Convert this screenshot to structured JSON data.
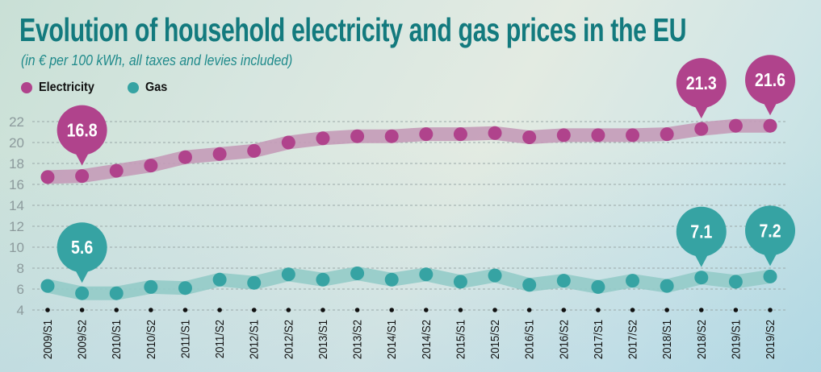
{
  "header": {
    "title": "Evolution of household electricity and gas prices in the EU",
    "subtitle": "(in € per 100 kWh, all taxes and levies included)"
  },
  "colors": {
    "electricity": "#b0438c",
    "electricity_band": "#c49bb8",
    "gas": "#36a3a3",
    "gas_band": "#93cbc8",
    "title": "#137a7e",
    "grid": "#9aa8a8"
  },
  "chart_data": {
    "type": "line",
    "title": "Evolution of household electricity and gas prices in the EU",
    "subtitle": "(in € per 100 kWh, all taxes and levies included)",
    "xlabel": "",
    "ylabel": "",
    "ylim": [
      4,
      22
    ],
    "yticks": [
      4,
      6,
      8,
      10,
      12,
      14,
      16,
      18,
      20,
      22
    ],
    "grid": true,
    "legend_position": "top-left",
    "categories": [
      "2009/S1",
      "2009/S2",
      "2010/S1",
      "2010/S2",
      "2011/S1",
      "2011/S2",
      "2012/S1",
      "2012/S2",
      "2013/S1",
      "2013/S2",
      "2014/S1",
      "2014/S2",
      "2015/S1",
      "2015/S2",
      "2016/S1",
      "2016/S2",
      "2017/S1",
      "2017/S2",
      "2018/S1",
      "2018/S2",
      "2019/S1",
      "2019/S2"
    ],
    "series": [
      {
        "name": "Electricity",
        "values": [
          16.7,
          16.8,
          17.3,
          17.8,
          18.6,
          18.9,
          19.2,
          20.0,
          20.4,
          20.6,
          20.6,
          20.8,
          20.8,
          20.9,
          20.5,
          20.7,
          20.7,
          20.7,
          20.8,
          21.3,
          21.6,
          21.6
        ]
      },
      {
        "name": "Gas",
        "values": [
          6.3,
          5.6,
          5.6,
          6.2,
          6.1,
          6.9,
          6.6,
          7.4,
          6.9,
          7.5,
          6.9,
          7.4,
          6.7,
          7.3,
          6.4,
          6.8,
          6.2,
          6.8,
          6.3,
          7.1,
          6.7,
          7.2
        ]
      }
    ],
    "annotations": [
      {
        "series": "Electricity",
        "category": "2009/S2",
        "label": "16.8"
      },
      {
        "series": "Electricity",
        "category": "2018/S2",
        "label": "21.3"
      },
      {
        "series": "Electricity",
        "category": "2019/S2",
        "label": "21.6"
      },
      {
        "series": "Gas",
        "category": "2009/S2",
        "label": "5.6"
      },
      {
        "series": "Gas",
        "category": "2018/S2",
        "label": "7.1"
      },
      {
        "series": "Gas",
        "category": "2019/S2",
        "label": "7.2"
      }
    ]
  }
}
